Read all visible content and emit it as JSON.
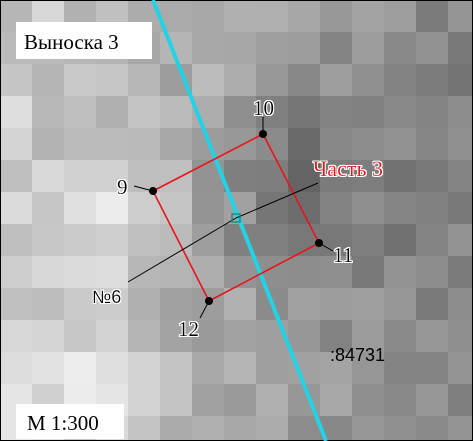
{
  "inset_title": "Выноска 3",
  "scale_label": "М 1:300",
  "part_label": "Часть 3",
  "object_label": "№6",
  "cadastral_label": ":84731",
  "points": [
    {
      "label": "9"
    },
    {
      "label": "10"
    },
    {
      "label": "11"
    },
    {
      "label": "12"
    }
  ],
  "colors": {
    "parcel_outline": "#e8141c",
    "road_line": "#22d3e6",
    "part_label": "#e8141c",
    "text": "#000000"
  }
}
